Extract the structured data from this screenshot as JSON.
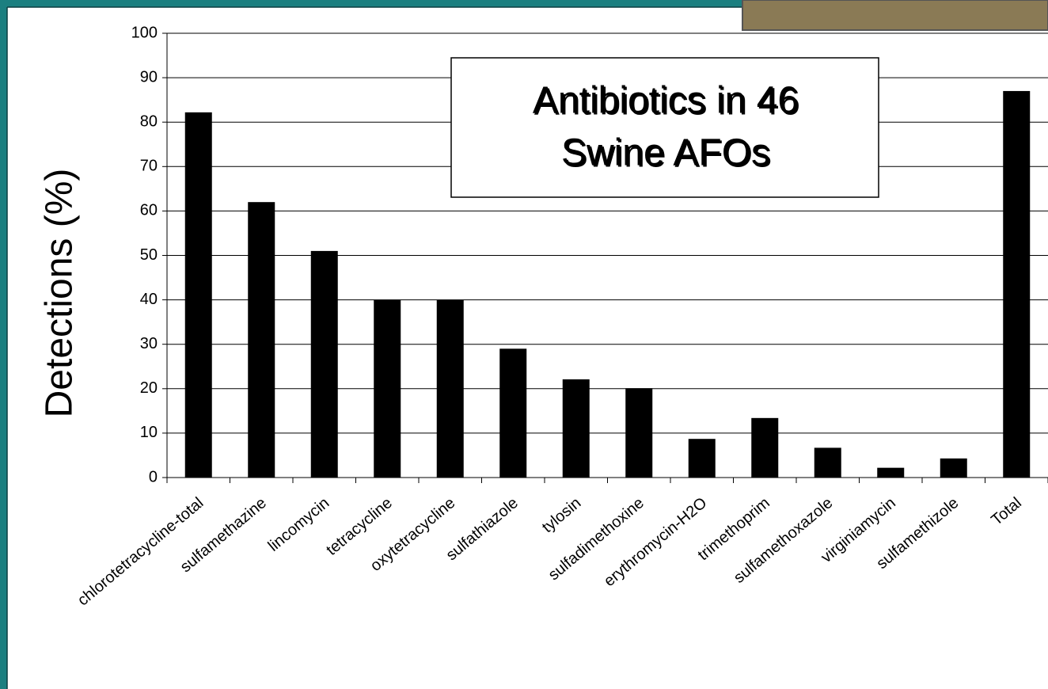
{
  "chart_data": {
    "type": "bar",
    "title_lines": [
      "Antibiotics in 46",
      "Swine AFOs"
    ],
    "y_label": "Detections (%)",
    "categories": [
      "chlorotetracycline-total",
      "sulfamethazine",
      "lincomycin",
      "tetracycline",
      "oxytetracycline",
      "sulfathiazole",
      "tylosin",
      "sulfadimethoxine",
      "erythromycin-H2O",
      "trimethoprim",
      "sulfamethoxazole",
      "virginiamycin",
      "sulfamethizole",
      "Total"
    ],
    "values": [
      82.2,
      62,
      51,
      40,
      40,
      29,
      22.1,
      20.1,
      8.7,
      13.4,
      6.7,
      2.2,
      4.3,
      87
    ],
    "color": "#000000",
    "ylim": [
      0,
      100
    ],
    "yticks": [
      0,
      10,
      20,
      30,
      40,
      50,
      60,
      70,
      80,
      90,
      100
    ],
    "grid": true
  }
}
